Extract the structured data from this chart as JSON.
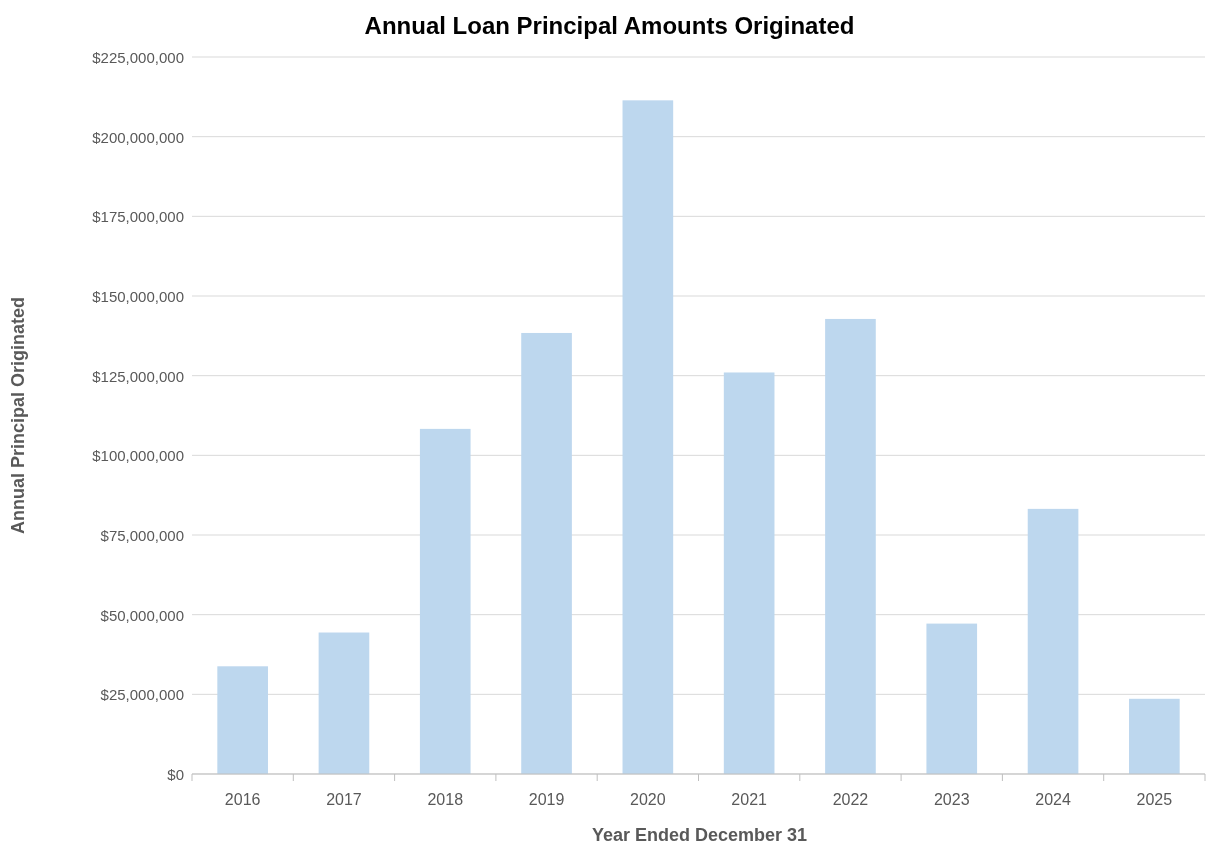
{
  "chart_data": {
    "type": "bar",
    "title": "Annual Loan Principal Amounts Originated",
    "xlabel": "Year Ended December 31",
    "ylabel": "Annual Principal Originated",
    "categories": [
      "2016",
      "2017",
      "2018",
      "2019",
      "2020",
      "2021",
      "2022",
      "2023",
      "2024",
      "2025"
    ],
    "values": [
      33800000,
      44400000,
      108300000,
      138400000,
      211400000,
      126000000,
      142800000,
      47200000,
      83200000,
      23600000
    ],
    "color": "#bdd7ee",
    "ylim": [
      0,
      225000000
    ],
    "yticks": [
      {
        "value": 0,
        "label": "$0"
      },
      {
        "value": 25000000,
        "label": "$25,000,000"
      },
      {
        "value": 50000000,
        "label": "$50,000,000"
      },
      {
        "value": 75000000,
        "label": "$75,000,000"
      },
      {
        "value": 100000000,
        "label": "$100,000,000"
      },
      {
        "value": 125000000,
        "label": "$125,000,000"
      },
      {
        "value": 150000000,
        "label": "$150,000,000"
      },
      {
        "value": 175000000,
        "label": "$175,000,000"
      },
      {
        "value": 200000000,
        "label": "$200,000,000"
      },
      {
        "value": 225000000,
        "label": "$225,000,000"
      }
    ],
    "grid": "y"
  }
}
